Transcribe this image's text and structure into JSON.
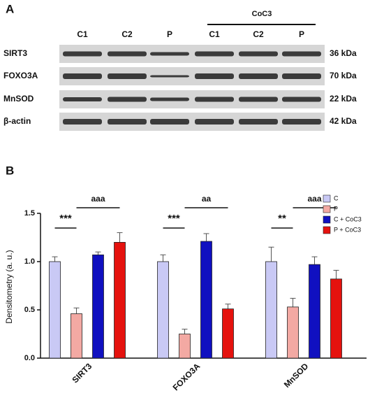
{
  "panel_a": {
    "label": "A",
    "group_label": "CoC3",
    "lanes": [
      "C1",
      "C2",
      "P",
      "C1",
      "C2",
      "P"
    ],
    "rows": [
      {
        "name": "SIRT3",
        "size": "36 kDa"
      },
      {
        "name": "FOXO3A",
        "size": "70 kDa"
      },
      {
        "name": "MnSOD",
        "size": "22 kDa"
      },
      {
        "name": "β-actin",
        "size": "42 kDa"
      }
    ]
  },
  "chart_data": {
    "type": "bar",
    "panel_label": "B",
    "y_label": "Densitometry (a. u.)",
    "categories": [
      "SIRT3",
      "FOXO3A",
      "MnSOD"
    ],
    "series": [
      {
        "name": "C",
        "color": "#c9c9f5",
        "values": [
          1.0,
          1.0,
          1.0
        ],
        "errors": [
          0.05,
          0.07,
          0.15
        ]
      },
      {
        "name": "P",
        "color": "#f3a9a3",
        "values": [
          0.46,
          0.25,
          0.53
        ],
        "errors": [
          0.06,
          0.05,
          0.09
        ]
      },
      {
        "name": "C + CoC3",
        "color": "#1010c0",
        "values": [
          1.07,
          1.21,
          0.97
        ],
        "errors": [
          0.03,
          0.08,
          0.08
        ]
      },
      {
        "name": "P + CoC3",
        "color": "#e5120e",
        "values": [
          1.2,
          0.51,
          0.82
        ],
        "errors": [
          0.1,
          0.05,
          0.09
        ]
      }
    ],
    "ylim": [
      0,
      1.5
    ],
    "yticks": [
      {
        "value": 0,
        "label": "0.0"
      },
      0.5,
      {
        "value": 1,
        "label": "1.0"
      },
      1.5
    ],
    "annotations": [
      "***",
      "aaa",
      "***",
      "aa",
      "**",
      "aaa"
    ],
    "legend": "top-right"
  }
}
